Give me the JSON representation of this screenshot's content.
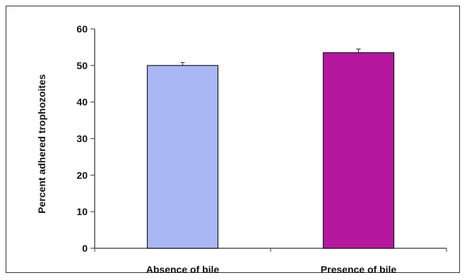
{
  "chart_data": {
    "type": "bar",
    "title": "",
    "xlabel": "",
    "ylabel": "Percent adhered trophozoites",
    "ylim": [
      0,
      60
    ],
    "yticks": [
      0,
      10,
      20,
      30,
      40,
      50,
      60
    ],
    "grid": false,
    "legend": "none",
    "categories": [
      "Absence of bile",
      "Presence of bile"
    ],
    "values": [
      50,
      53.5
    ],
    "error": [
      0.8,
      1.0
    ],
    "colors": [
      "#a9b8f5",
      "#b5179e"
    ]
  }
}
